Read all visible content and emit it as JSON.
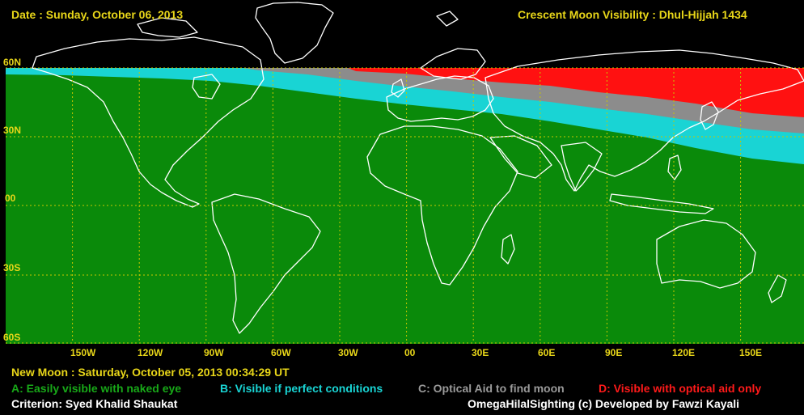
{
  "header": {
    "date": "Date : Sunday, October 06, 2013",
    "title": "Crescent Moon Visibility : Dhul-Hijjah  1434"
  },
  "lat_labels": [
    "60N",
    "30N",
    "00",
    "30S",
    "60S"
  ],
  "lon_labels": [
    "150W",
    "120W",
    "90W",
    "60W",
    "30W",
    "00",
    "30E",
    "60E",
    "90E",
    "120E",
    "150E"
  ],
  "footer": {
    "new_moon": "New Moon : Saturday, October 05, 2013  00:34:29  UT",
    "legend_a": "A: Easily visible with naked eye",
    "legend_b": "B: Visible if perfect conditions",
    "legend_c": "C: Optical Aid to find moon",
    "legend_d": "D: Visible with optical aid only",
    "criterion": "Criterion: Syed Khalid Shaukat",
    "credit": "OmegaHilalSighting  (c)  Developed by Fawzi Kayali"
  },
  "colors": {
    "zone_a": "#0a8a0a",
    "zone_b": "#19d4d4",
    "zone_c": "#8c8c8c",
    "zone_d": "#ff1111",
    "label_yellow": "#e8d619",
    "legend_a": "#18a818",
    "legend_b": "#19d4d4",
    "legend_c": "#9a9a9a",
    "legend_d": "#ff1a1a",
    "white": "#ffffff"
  }
}
